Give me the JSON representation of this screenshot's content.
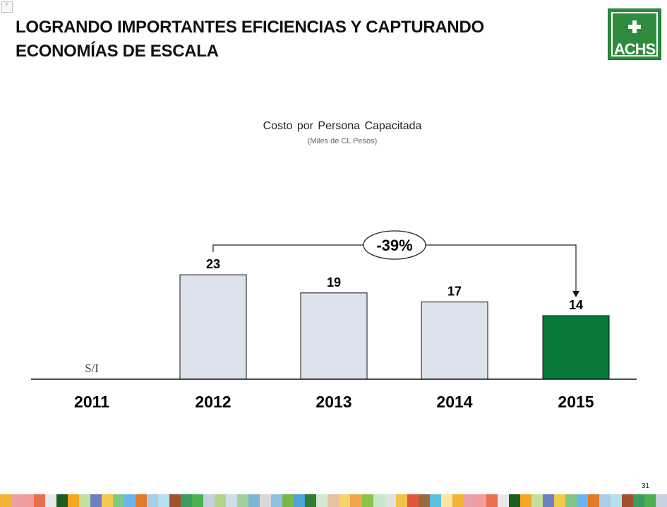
{
  "header": {
    "title": "LOGRANDO IMPORTANTES EFICIENCIAS Y CAPTURANDO ECONOMÍAS DE ESCALA",
    "corner_glyph": "⌜"
  },
  "logo": {
    "text": "ACHS",
    "color": "#2e8b3e"
  },
  "chart_data": {
    "type": "bar",
    "title": "Costo por Persona Capacitada",
    "subtitle": "(Miles de CL Pesos)",
    "categories": [
      "2011",
      "2012",
      "2013",
      "2014",
      "2015"
    ],
    "values": [
      null,
      23,
      19,
      17,
      14
    ],
    "data_labels": [
      "S/I",
      "23",
      "19",
      "17",
      "14"
    ],
    "bar_colors": [
      "#dde3ed",
      "#dde3ed",
      "#dde3ed",
      "#dde3ed",
      "#077a3a"
    ],
    "ylim": [
      0,
      30
    ],
    "grid": false,
    "annotation": {
      "text": "-39%",
      "from": "2012",
      "to": "2015"
    }
  },
  "footer": {
    "page_number": "31"
  },
  "strip_colors": [
    "#f2b233",
    "#d9d9d9",
    "#f5a623",
    "#e8c1a0",
    "#e07b2a",
    "#f0c24b",
    "#c5d1e0",
    "#e9a0a8",
    "#8fc1e3",
    "#c4df9b",
    "#f7d36b",
    "#a9cfe8",
    "#e3563b",
    "#b2d38a",
    "#f39c9c",
    "#7ab648",
    "#6d7fbf",
    "#f0a64b",
    "#b7e0ef",
    "#9b6a3c",
    "#cfdde8",
    "#e76f51",
    "#4da3d4",
    "#f2c94c",
    "#8bc34a",
    "#a0522d",
    "#5bc0de",
    "#9fd0a0",
    "#e8e8e8",
    "#2e7d32",
    "#81c784",
    "#c8e6c9",
    "#3a9d5d",
    "#f9e79f",
    "#7fb3d5",
    "#1b5e20",
    "#d5e8d4",
    "#6db3f2",
    "#e0e0e0",
    "#4caf50"
  ]
}
